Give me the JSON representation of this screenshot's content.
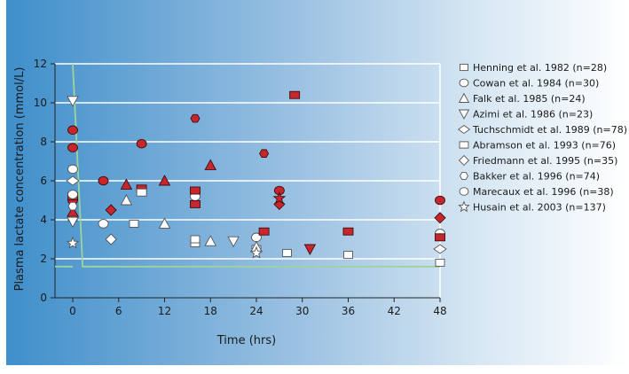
{
  "chart_data": {
    "type": "scatter",
    "xlabel": "Time (hrs)",
    "ylabel": "Plasma lactate concentration (mmol/L)",
    "xlim": [
      -2,
      48
    ],
    "ylim": [
      0,
      12
    ],
    "x_ticks": [
      0,
      6,
      12,
      18,
      24,
      30,
      36,
      42,
      48
    ],
    "y_ticks": [
      0,
      2,
      4,
      6,
      8,
      10,
      12
    ],
    "grid": "horizontal",
    "legend_position": "right",
    "reference_line": {
      "points": [
        [
          0,
          12
        ],
        [
          1.3,
          1.6
        ],
        [
          48,
          1.6
        ]
      ],
      "color": "#9ed49b"
    },
    "series": [
      {
        "name": "Henning et al. 1982 (n=28)",
        "marker": "square",
        "points": [
          {
            "x": 0,
            "y": 4.1,
            "f": "o"
          },
          {
            "x": 8,
            "y": 3.8,
            "f": "o"
          },
          {
            "x": 16,
            "y": 2.8,
            "f": "o"
          },
          {
            "x": 16,
            "y": 3.0,
            "f": "o"
          },
          {
            "x": 24,
            "y": 2.5,
            "f": "o"
          },
          {
            "x": 28,
            "y": 2.3,
            "f": "o"
          },
          {
            "x": 36,
            "y": 2.2,
            "f": "o"
          },
          {
            "x": 48,
            "y": 1.8,
            "f": "o"
          }
        ]
      },
      {
        "name": "Cowan et al. 1984 (n=30)",
        "marker": "circle",
        "points": [
          {
            "x": 0,
            "y": 6.6,
            "f": "o"
          },
          {
            "x": 0,
            "y": 8.6,
            "f": "f"
          },
          {
            "x": 0,
            "y": 7.7,
            "f": "f"
          },
          {
            "x": 0,
            "y": 5.0,
            "f": "f"
          },
          {
            "x": 4,
            "y": 3.8,
            "f": "o"
          },
          {
            "x": 4,
            "y": 6.0,
            "f": "f"
          },
          {
            "x": 16,
            "y": 5.2,
            "f": "o"
          },
          {
            "x": 24,
            "y": 3.1,
            "f": "o"
          },
          {
            "x": 27,
            "y": 5.5,
            "f": "f"
          },
          {
            "x": 48,
            "y": 3.3,
            "f": "o"
          },
          {
            "x": 48,
            "y": 5.0,
            "f": "f"
          }
        ]
      },
      {
        "name": "Falk et al. 1985 (n=24)",
        "marker": "triangle-up",
        "points": [
          {
            "x": 0,
            "y": 4.4,
            "f": "f"
          },
          {
            "x": 7,
            "y": 5.0,
            "f": "o"
          },
          {
            "x": 7,
            "y": 5.8,
            "f": "f"
          },
          {
            "x": 12,
            "y": 6.0,
            "f": "f"
          },
          {
            "x": 12,
            "y": 3.8,
            "f": "o"
          },
          {
            "x": 18,
            "y": 6.8,
            "f": "f"
          },
          {
            "x": 18,
            "y": 2.9,
            "f": "o"
          },
          {
            "x": 24,
            "y": 2.6,
            "f": "o"
          }
        ]
      },
      {
        "name": "Azimi et al. 1986 (n=23)",
        "marker": "triangle-down",
        "points": [
          {
            "x": 0,
            "y": 10.1,
            "f": "o"
          },
          {
            "x": 0,
            "y": 3.9,
            "f": "o"
          },
          {
            "x": 21,
            "y": 2.9,
            "f": "o"
          },
          {
            "x": 31,
            "y": 2.5,
            "f": "f"
          }
        ]
      },
      {
        "name": "Tuchschmidt et al. 1989 (n=78)",
        "marker": "diamond-wide",
        "points": [
          {
            "x": 0,
            "y": 6.0,
            "f": "o"
          },
          {
            "x": 48,
            "y": 2.5,
            "f": "o"
          }
        ]
      },
      {
        "name": "Abramson et al. 1993 (n=76)",
        "marker": "rect",
        "points": [
          {
            "x": 0,
            "y": 5.2,
            "f": "f"
          },
          {
            "x": 9,
            "y": 5.6,
            "f": "f"
          },
          {
            "x": 9,
            "y": 5.4,
            "f": "o"
          },
          {
            "x": 16,
            "y": 5.5,
            "f": "f"
          },
          {
            "x": 16,
            "y": 4.8,
            "f": "f"
          },
          {
            "x": 25,
            "y": 3.4,
            "f": "f"
          },
          {
            "x": 29,
            "y": 10.4,
            "f": "f"
          },
          {
            "x": 36,
            "y": 3.4,
            "f": "f"
          },
          {
            "x": 48,
            "y": 3.1,
            "f": "f"
          }
        ]
      },
      {
        "name": "Friedmann et al. 1995 (n=35)",
        "marker": "diamond",
        "points": [
          {
            "x": 5,
            "y": 4.5,
            "f": "f"
          },
          {
            "x": 5,
            "y": 3.0,
            "f": "o"
          },
          {
            "x": 27,
            "y": 4.8,
            "f": "f"
          },
          {
            "x": 48,
            "y": 4.1,
            "f": "f"
          }
        ]
      },
      {
        "name": "Bakker et al. 1996 (n=74)",
        "marker": "hexagon",
        "points": [
          {
            "x": 0,
            "y": 4.7,
            "f": "o"
          },
          {
            "x": 16,
            "y": 9.2,
            "f": "f"
          },
          {
            "x": 25,
            "y": 7.4,
            "f": "f"
          }
        ]
      },
      {
        "name": "Marecaux et al. 1996 (n=38)",
        "marker": "circle",
        "points": [
          {
            "x": 0,
            "y": 5.3,
            "f": "o"
          },
          {
            "x": 9,
            "y": 7.9,
            "f": "f"
          }
        ]
      },
      {
        "name": "Husain et al. 2003 (n=137)",
        "marker": "star",
        "points": [
          {
            "x": 0,
            "y": 2.8,
            "f": "o"
          },
          {
            "x": 24,
            "y": 2.3,
            "f": "o"
          },
          {
            "x": 27,
            "y": 5.1,
            "f": "f"
          }
        ]
      }
    ]
  },
  "colors": {
    "fill_red": "#c9252c",
    "stroke_dark": "#3a1010",
    "open_fill": "#ffffff",
    "grid": "#ffffff",
    "axis": "#222222"
  }
}
